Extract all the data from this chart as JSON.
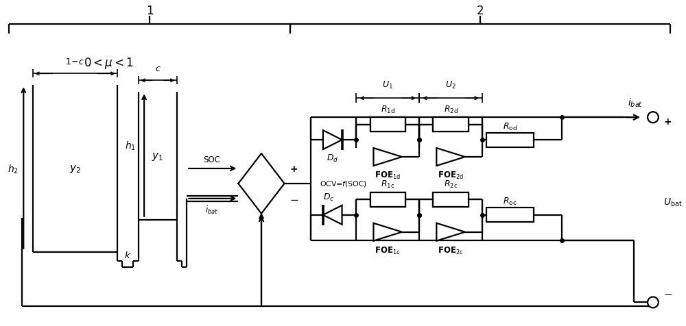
{
  "bg_color": "#ffffff",
  "lc": "#000000",
  "fig_w": 10.0,
  "fig_h": 4.77,
  "lw": 1.6,
  "bracket1_label": "1",
  "bracket2_label": "2",
  "mu_label": "$0 < \\mu < 1$",
  "y2_label": "$y_2$",
  "y1_label": "$y_1$",
  "h2_label": "$h_2$",
  "h1_label": "$h_1$",
  "k_label": "$k$",
  "oneminusc_label": "$1\\!-\\!c$",
  "c_label": "$c$",
  "soc_label": "SOC",
  "ibat_label": "$i_{bat}$",
  "ibat_label2": "$i_{bat}$",
  "ocv_label": "OCV=$f$(SOC)",
  "dd_label": "$D_d$",
  "dc_label": "$D_c$",
  "r1d_label": "$R_{\\mathrm{1d}}$",
  "r2d_label": "$R_{\\mathrm{2d}}$",
  "rod_label": "$R_{\\mathrm{od}}$",
  "r1c_label": "$R_{\\mathrm{1c}}$",
  "r2c_label": "$R_{\\mathrm{2c}}$",
  "roc_label": "$R_{\\mathrm{oc}}$",
  "foe1d_label": "FOE$_{\\mathrm{1d}}$",
  "foe2d_label": "FOE$_{\\mathrm{2d}}$",
  "foe1c_label": "FOE$_{\\mathrm{1c}}$",
  "foe2c_label": "FOE$_{\\mathrm{2c}}$",
  "u1_label": "$U_1$",
  "u2_label": "$U_2$",
  "ubat_label": "$U_{\\mathrm{bat}}$",
  "plus_label": "+",
  "minus_label": "$-$"
}
